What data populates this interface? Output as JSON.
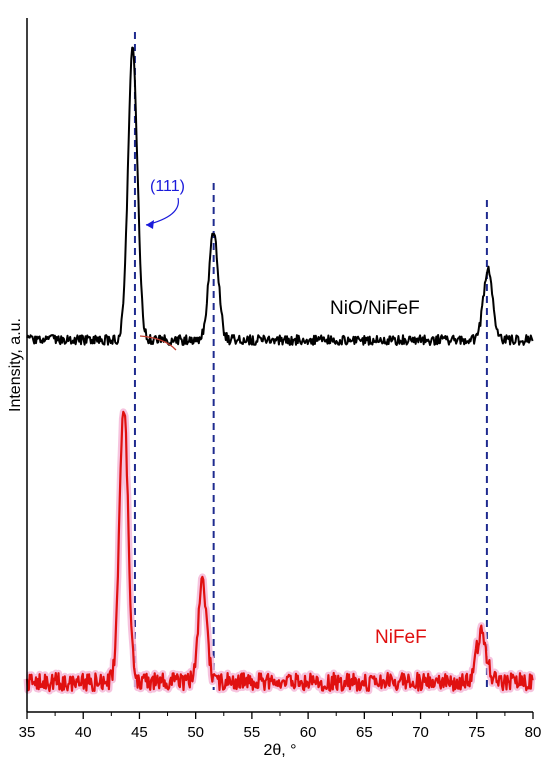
{
  "chart_data": {
    "type": "line",
    "xlabel": "2θ, °",
    "ylabel": "Intensity, a.u.",
    "xlim": [
      35,
      80
    ],
    "x_ticks": [
      35,
      40,
      45,
      50,
      55,
      60,
      65,
      70,
      75,
      80
    ],
    "y_ticks_shown": false,
    "grid": false,
    "legend": "none",
    "reference_lines": {
      "style": "dashed",
      "color": "#1f2b8f",
      "x": [
        44.6,
        51.6,
        75.9
      ]
    },
    "annotations": [
      {
        "text": "(111)",
        "color": "#1a1adb",
        "points_to_x": 44.6
      }
    ],
    "series": [
      {
        "name": "NiO/NiFeF",
        "color": "#000000",
        "peaks": [
          {
            "x": 44.4,
            "height": 290
          },
          {
            "x": 51.6,
            "height": 108
          },
          {
            "x": 76.0,
            "height": 70
          }
        ],
        "baseline_y_range": [
          0.55,
          0.57
        ]
      },
      {
        "name": "NiFeF",
        "color": "#e01010",
        "peaks": [
          {
            "x": 43.6,
            "height": 278
          },
          {
            "x": 50.6,
            "height": 98
          },
          {
            "x": 75.4,
            "height": 48
          }
        ],
        "baseline_y_range": [
          0.1,
          0.12
        ]
      }
    ]
  }
}
